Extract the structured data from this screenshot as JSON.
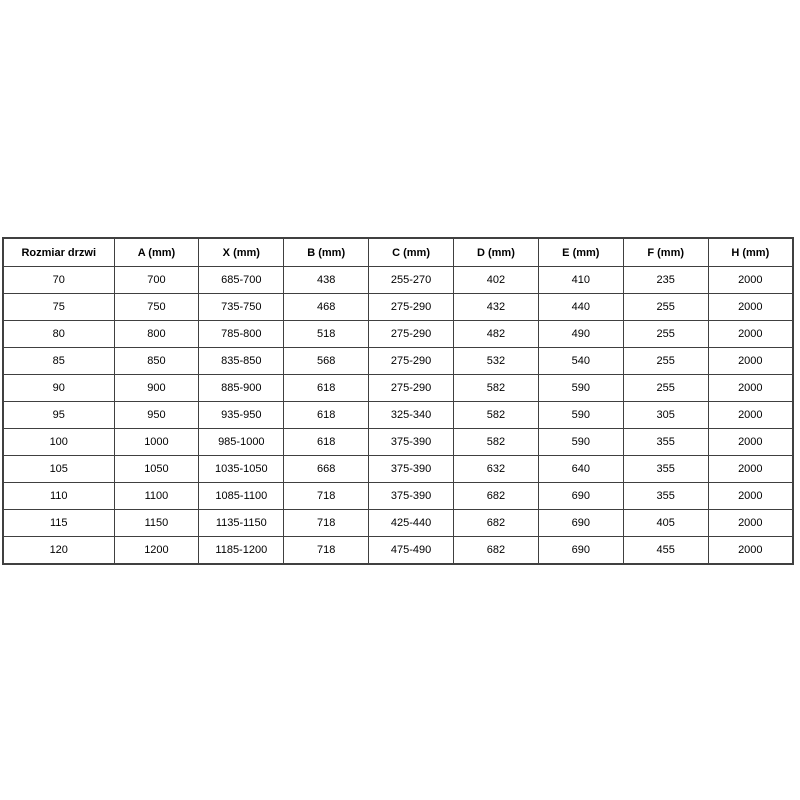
{
  "colors": {
    "background": "#ffffff",
    "table_border": "#404040",
    "text": "#000000"
  },
  "chart_data": {
    "type": "table",
    "title": "",
    "columns": [
      "Rozmiar drzwi",
      "A (mm)",
      "X (mm)",
      "B (mm)",
      "C (mm)",
      "D (mm)",
      "E (mm)",
      "F (mm)",
      "H (mm)"
    ],
    "rows": [
      [
        "70",
        "700",
        "685-700",
        "438",
        "255-270",
        "402",
        "410",
        "235",
        "2000"
      ],
      [
        "75",
        "750",
        "735-750",
        "468",
        "275-290",
        "432",
        "440",
        "255",
        "2000"
      ],
      [
        "80",
        "800",
        "785-800",
        "518",
        "275-290",
        "482",
        "490",
        "255",
        "2000"
      ],
      [
        "85",
        "850",
        "835-850",
        "568",
        "275-290",
        "532",
        "540",
        "255",
        "2000"
      ],
      [
        "90",
        "900",
        "885-900",
        "618",
        "275-290",
        "582",
        "590",
        "255",
        "2000"
      ],
      [
        "95",
        "950",
        "935-950",
        "618",
        "325-340",
        "582",
        "590",
        "305",
        "2000"
      ],
      [
        "100",
        "1000",
        "985-1000",
        "618",
        "375-390",
        "582",
        "590",
        "355",
        "2000"
      ],
      [
        "105",
        "1050",
        "1035-1050",
        "668",
        "375-390",
        "632",
        "640",
        "355",
        "2000"
      ],
      [
        "110",
        "1100",
        "1085-1100",
        "718",
        "375-390",
        "682",
        "690",
        "355",
        "2000"
      ],
      [
        "115",
        "1150",
        "1135-1150",
        "718",
        "425-440",
        "682",
        "690",
        "405",
        "2000"
      ],
      [
        "120",
        "1200",
        "1185-1200",
        "718",
        "475-490",
        "682",
        "690",
        "455",
        "2000"
      ]
    ]
  }
}
